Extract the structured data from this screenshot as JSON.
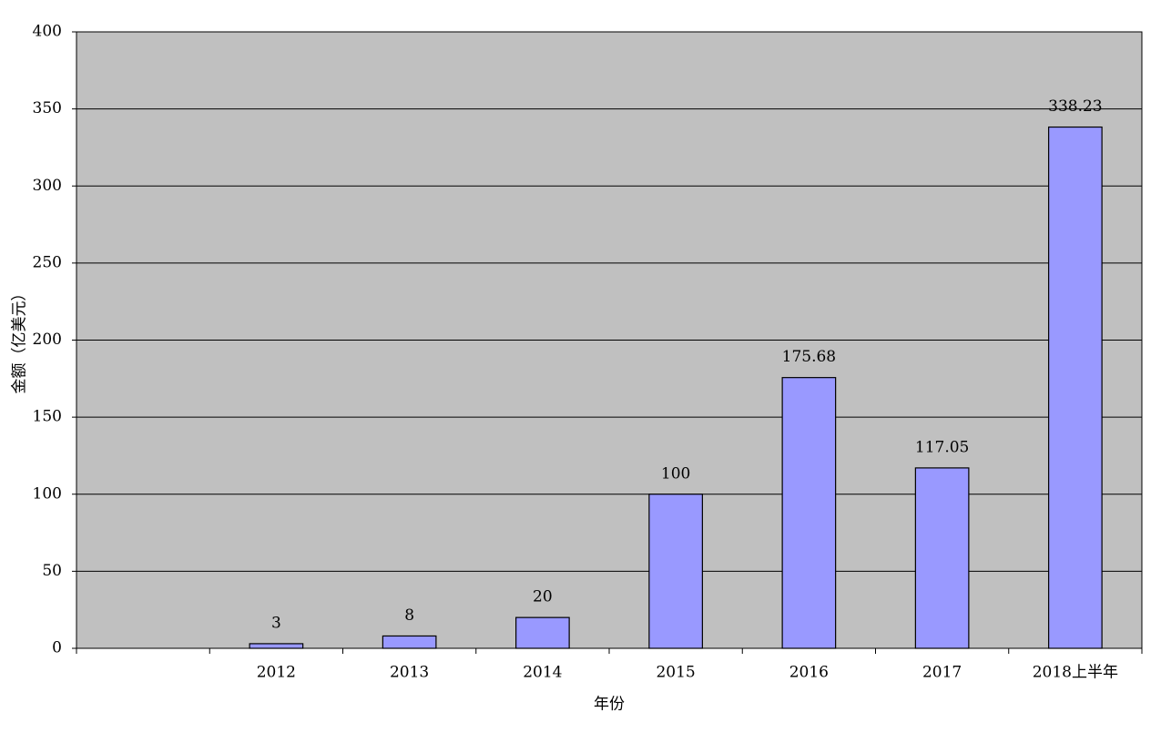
{
  "chart_data": {
    "type": "bar",
    "x_label": "年份",
    "y_label": "金额（亿美元）",
    "categories": [
      null,
      "2012",
      "2013",
      "2014",
      "2015",
      "2016",
      "2017",
      "2018上半年"
    ],
    "values": [
      null,
      3,
      8,
      20,
      100,
      175.68,
      117.05,
      338.23
    ],
    "color": "#9999ff",
    "ylim": [
      0,
      400
    ],
    "yticks": [
      0,
      50,
      100,
      150,
      200,
      250,
      300,
      350,
      400
    ],
    "grid": true
  }
}
